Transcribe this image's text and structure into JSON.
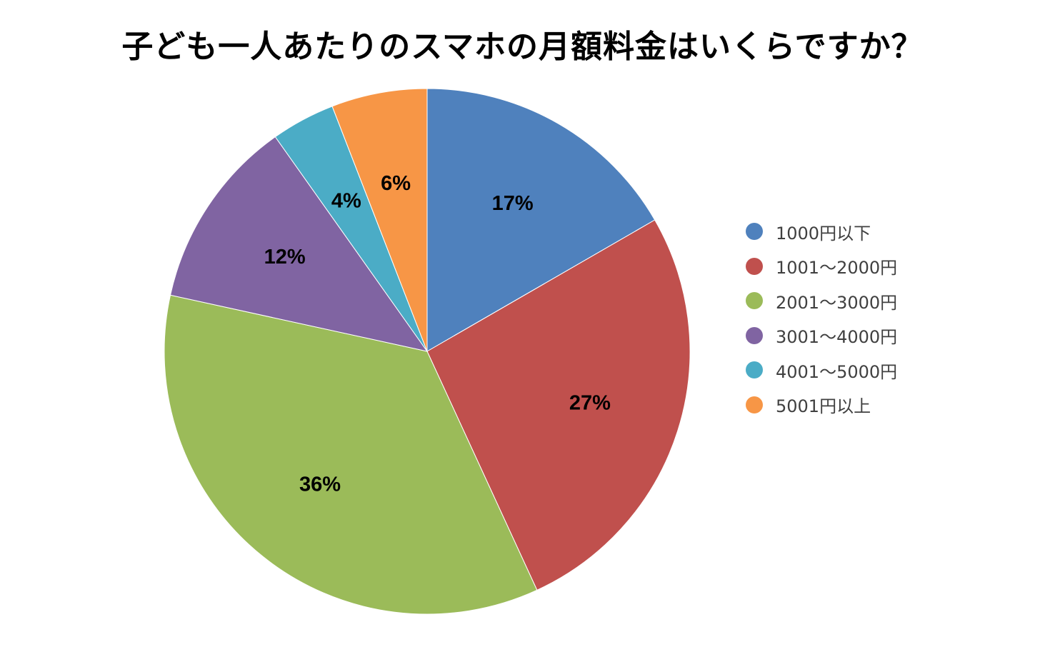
{
  "chart_data": {
    "type": "pie",
    "title": "子ども一人あたりのスマホの月額料金はいくらですか？",
    "categories": [
      "1000円以下",
      "1001～2000円",
      "2001～3000円",
      "3001～4000円",
      "4001～5000円",
      "5001円以上"
    ],
    "values": [
      17,
      27,
      36,
      12,
      4,
      6
    ],
    "value_labels": [
      "17%",
      "27%",
      "36%",
      "12%",
      "4%",
      "6%"
    ],
    "unit": "%",
    "colors": [
      "#4f81bd",
      "#c0504d",
      "#9bbb59",
      "#8064a2",
      "#4bacc6",
      "#f79646"
    ],
    "start": "12 o'clock",
    "direction": "clockwise",
    "legend": {
      "position": "right",
      "marker": "circle"
    }
  }
}
